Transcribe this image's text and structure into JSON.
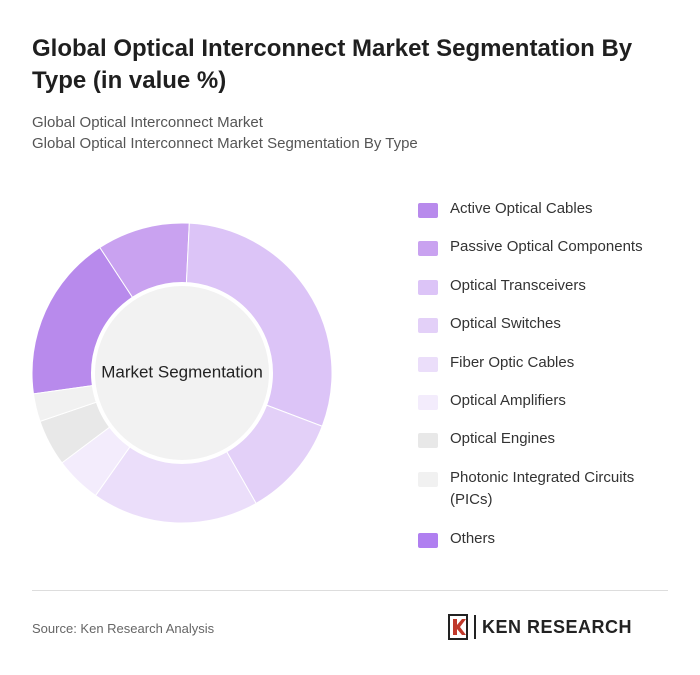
{
  "header": {
    "title": "Global Optical Interconnect Market Segmentation By Type (in value %)",
    "subtitle_1": "Global Optical Interconnect Market",
    "subtitle_2": "Global Optical Interconnect Market Segmentation By Type"
  },
  "chart_data": {
    "type": "donut",
    "center_label": "Market Segmentation",
    "categories": [
      "Active Optical Cables",
      "Passive Optical Components",
      "Optical Transceivers",
      "Optical Switches",
      "Fiber Optic Cables",
      "Optical Amplifiers",
      "Optical Engines",
      "Photonic Integrated Circuits (PICs)",
      "Others"
    ],
    "values": [
      18,
      10,
      30,
      11,
      18,
      5,
      5,
      3,
      0
    ],
    "colors": [
      "#b88aec",
      "#c9a2f0",
      "#dcc4f7",
      "#e3d0f8",
      "#ebdefa",
      "#f3ecfc",
      "#e8e8e8",
      "#f1f1f1",
      "#b07ff0"
    ],
    "legend_position": "right"
  },
  "footer": {
    "source": "Source: Ken Research Analysis",
    "logo_text": "KEN RESEARCH"
  }
}
